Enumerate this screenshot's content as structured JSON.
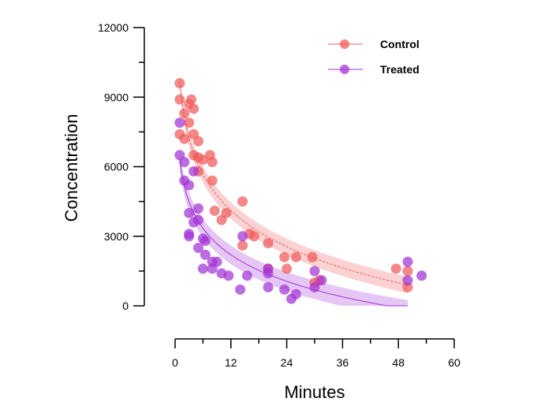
{
  "chart_data": {
    "type": "scatter",
    "title": "",
    "xlabel": "Minutes",
    "ylabel": "Concentration",
    "xlim": [
      0,
      60
    ],
    "ylim": [
      0,
      12000
    ],
    "xticks": [
      "0",
      "12",
      "24",
      "36",
      "48",
      "60"
    ],
    "yticks": [
      "0",
      "3000",
      "6000",
      "9000",
      "12000"
    ],
    "legend": {
      "placement": "top-right"
    },
    "series": [
      {
        "name": "Control",
        "color": "#f05a5a",
        "fit": {
          "model": "a - b*ln(x)",
          "a": 9700,
          "b": 2250,
          "x_from": 1,
          "x_to": 50,
          "band_half_width": 350
        },
        "points": [
          [
            1,
            9600
          ],
          [
            1,
            8900
          ],
          [
            1,
            7400
          ],
          [
            2,
            8300
          ],
          [
            2,
            7200
          ],
          [
            3,
            8700
          ],
          [
            3,
            7900
          ],
          [
            3.5,
            8900
          ],
          [
            4,
            8500
          ],
          [
            4,
            7400
          ],
          [
            4,
            6500
          ],
          [
            5,
            7100
          ],
          [
            5,
            6400
          ],
          [
            5,
            5800
          ],
          [
            6,
            6300
          ],
          [
            7.5,
            6500
          ],
          [
            8,
            6200
          ],
          [
            8,
            5400
          ],
          [
            8.5,
            4100
          ],
          [
            10,
            3700
          ],
          [
            11,
            4000
          ],
          [
            14.5,
            4500
          ],
          [
            14.5,
            2600
          ],
          [
            16,
            3100
          ],
          [
            17,
            3000
          ],
          [
            20,
            2700
          ],
          [
            20,
            1600
          ],
          [
            23.5,
            2100
          ],
          [
            24,
            1600
          ],
          [
            26,
            2100
          ],
          [
            29.5,
            2100
          ],
          [
            30,
            1000
          ],
          [
            31,
            1100
          ],
          [
            47.5,
            1600
          ],
          [
            50,
            1500
          ],
          [
            50,
            800
          ]
        ]
      },
      {
        "name": "Treated",
        "color": "#a233d6",
        "fit": {
          "model": "a - b*ln(x)",
          "a": 6300,
          "b": 1650,
          "x_from": 1,
          "x_to": 50,
          "band_half_width": 400
        },
        "points": [
          [
            1,
            7900
          ],
          [
            1,
            6500
          ],
          [
            2,
            6200
          ],
          [
            2,
            5400
          ],
          [
            3,
            5200
          ],
          [
            3,
            4000
          ],
          [
            3,
            3100
          ],
          [
            3,
            3000
          ],
          [
            4,
            5800
          ],
          [
            4,
            3600
          ],
          [
            5,
            4200
          ],
          [
            5,
            3700
          ],
          [
            5,
            2500
          ],
          [
            6,
            2900
          ],
          [
            6,
            1600
          ],
          [
            6.5,
            2800
          ],
          [
            6.5,
            2200
          ],
          [
            8,
            1900
          ],
          [
            8,
            1600
          ],
          [
            9,
            1900
          ],
          [
            10,
            1400
          ],
          [
            11.5,
            1300
          ],
          [
            14,
            700
          ],
          [
            14.5,
            3000
          ],
          [
            15.5,
            1300
          ],
          [
            20,
            1600
          ],
          [
            20,
            1400
          ],
          [
            20,
            800
          ],
          [
            23.5,
            700
          ],
          [
            25,
            300
          ],
          [
            26,
            500
          ],
          [
            30,
            1500
          ],
          [
            30,
            800
          ],
          [
            31.5,
            1100
          ],
          [
            50,
            1900
          ],
          [
            50,
            1100
          ],
          [
            53,
            1300
          ]
        ]
      }
    ]
  }
}
